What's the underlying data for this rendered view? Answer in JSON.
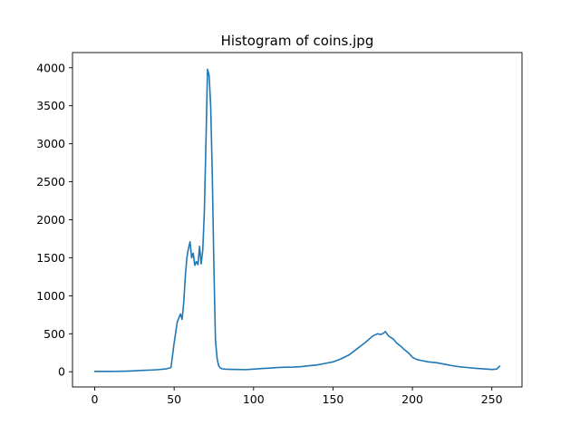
{
  "chart_data": {
    "type": "line",
    "title": "Histogram of coins.jpg",
    "xlabel": "",
    "ylabel": "",
    "xlim": [
      -14,
      269
    ],
    "ylim": [
      -200,
      4200
    ],
    "xticks": [
      0,
      50,
      100,
      150,
      200,
      250
    ],
    "yticks": [
      0,
      500,
      1000,
      1500,
      2000,
      2500,
      3000,
      3500,
      4000
    ],
    "grid": false,
    "legend": "none",
    "line_color": "#1f77b4",
    "series": [
      {
        "x": [
          0,
          5,
          10,
          15,
          20,
          25,
          30,
          35,
          40,
          45,
          48,
          50,
          52,
          54,
          55,
          56,
          57,
          58,
          59,
          60,
          61,
          62,
          63,
          64,
          65,
          66,
          67,
          68,
          69,
          70,
          71,
          72,
          73,
          74,
          75,
          76,
          77,
          78,
          79,
          80,
          82,
          85,
          90,
          95,
          100,
          105,
          110,
          115,
          120,
          125,
          130,
          135,
          140,
          145,
          150,
          155,
          160,
          165,
          170,
          175,
          178,
          180,
          182,
          183,
          185,
          188,
          190,
          193,
          195,
          198,
          200,
          203,
          205,
          210,
          215,
          220,
          225,
          230,
          235,
          240,
          245,
          250,
          253,
          255
        ],
        "y": [
          5,
          5,
          5,
          6,
          8,
          12,
          18,
          22,
          28,
          38,
          55,
          380,
          660,
          760,
          690,
          900,
          1250,
          1500,
          1620,
          1710,
          1500,
          1560,
          1400,
          1450,
          1410,
          1650,
          1420,
          1600,
          2100,
          3000,
          3980,
          3900,
          3500,
          2600,
          1400,
          420,
          180,
          80,
          50,
          40,
          35,
          32,
          30,
          28,
          35,
          42,
          48,
          55,
          60,
          62,
          68,
          80,
          90,
          110,
          130,
          170,
          220,
          300,
          380,
          470,
          500,
          490,
          510,
          530,
          470,
          430,
          380,
          330,
          290,
          240,
          190,
          160,
          150,
          130,
          120,
          100,
          80,
          65,
          55,
          45,
          38,
          30,
          35,
          75
        ]
      }
    ]
  }
}
